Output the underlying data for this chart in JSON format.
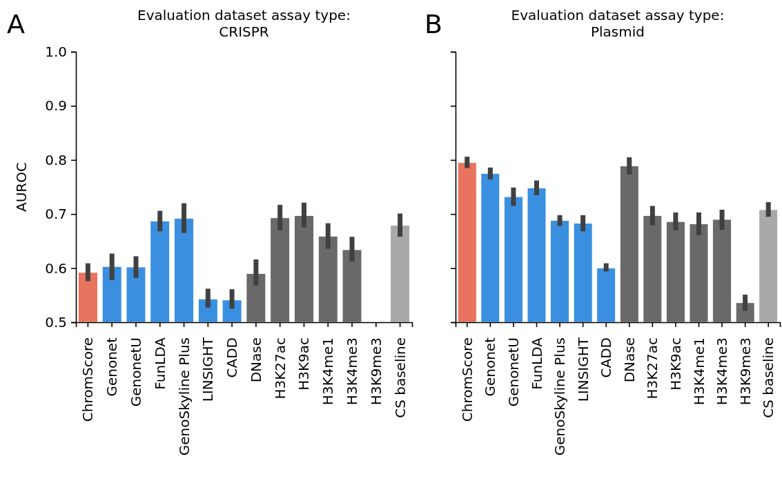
{
  "chart_data": [
    {
      "type": "bar",
      "title": "Evaluation dataset assay type:\nCRISPR",
      "ylabel": "AUROC",
      "annotations": [
        "A"
      ],
      "categories": [
        "ChromScore",
        "Genonet",
        "GenonetU",
        "FunLDA",
        "GenoSkyline Plus",
        "LINSIGHT",
        "CADD",
        "DNase",
        "H3K27ac",
        "H3K9ac",
        "H3K4me1",
        "H3K4me3",
        "H3K9me3",
        "CS baseline"
      ],
      "values": [
        0.592,
        0.603,
        0.602,
        0.687,
        0.692,
        0.543,
        0.541,
        0.59,
        0.693,
        0.697,
        0.659,
        0.634,
        null,
        0.679
      ],
      "errors": [
        [
          0.576,
          0.609
        ],
        [
          0.578,
          0.627
        ],
        [
          0.582,
          0.622
        ],
        [
          0.668,
          0.706
        ],
        [
          0.665,
          0.72
        ],
        [
          0.527,
          0.562
        ],
        [
          0.525,
          0.561
        ],
        [
          0.568,
          0.616
        ],
        [
          0.67,
          0.717
        ],
        [
          0.675,
          0.721
        ],
        [
          0.636,
          0.683
        ],
        [
          0.612,
          0.658
        ],
        null,
        [
          0.658,
          0.701
        ]
      ],
      "colors": [
        "#e8735f",
        "#3a8fe0",
        "#3a8fe0",
        "#3a8fe0",
        "#3a8fe0",
        "#3a8fe0",
        "#3a8fe0",
        "#696969",
        "#696969",
        "#696969",
        "#696969",
        "#696969",
        null,
        "#a9a9a9"
      ],
      "ylim": [
        0.5,
        1.0
      ],
      "yticks": [
        0.5,
        0.6,
        0.7,
        0.8,
        0.9,
        {
          "value": 1,
          "label": "1.0"
        }
      ],
      "grid": false
    },
    {
      "type": "bar",
      "title": "Evaluation dataset assay type:\nPlasmid",
      "annotations": [
        "B"
      ],
      "categories": [
        "ChromScore",
        "Genonet",
        "GenonetU",
        "FunLDA",
        "GenoSkyline Plus",
        "LINSIGHT",
        "CADD",
        "DNase",
        "H3K27ac",
        "H3K9ac",
        "H3K4me1",
        "H3K4me3",
        "H3K9me3",
        "CS baseline"
      ],
      "values": [
        0.795,
        0.775,
        0.732,
        0.748,
        0.688,
        0.683,
        0.6,
        0.789,
        0.697,
        0.686,
        0.682,
        0.69,
        0.536,
        0.708
      ],
      "errors": [
        [
          0.785,
          0.806
        ],
        [
          0.764,
          0.786
        ],
        [
          0.715,
          0.749
        ],
        [
          0.735,
          0.762
        ],
        [
          0.678,
          0.698
        ],
        [
          0.668,
          0.698
        ],
        [
          0.594,
          0.609
        ],
        [
          0.773,
          0.805
        ],
        [
          0.679,
          0.715
        ],
        [
          0.67,
          0.703
        ],
        [
          0.661,
          0.703
        ],
        [
          0.671,
          0.708
        ],
        [
          0.521,
          0.551
        ],
        [
          0.695,
          0.722
        ]
      ],
      "colors": [
        "#e8735f",
        "#3a8fe0",
        "#3a8fe0",
        "#3a8fe0",
        "#3a8fe0",
        "#3a8fe0",
        "#3a8fe0",
        "#696969",
        "#696969",
        "#696969",
        "#696969",
        "#696969",
        "#696969",
        "#a9a9a9"
      ],
      "ylim": [
        0.5,
        1.0
      ],
      "yticks": [
        0.5,
        0.6,
        0.7,
        0.8,
        0.9,
        1
      ],
      "tick_labels": "x",
      "grid": false
    }
  ]
}
